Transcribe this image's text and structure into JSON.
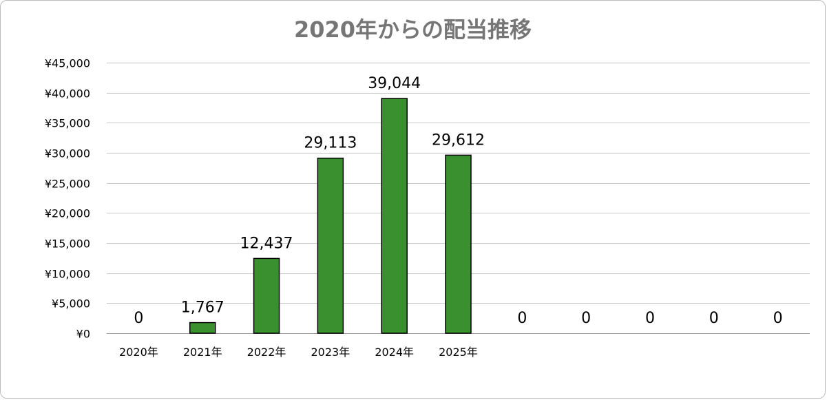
{
  "chart_data": {
    "type": "bar",
    "title": "2020年からの配当推移",
    "xlabel": "",
    "ylabel": "",
    "categories": [
      "2020年",
      "2021年",
      "2022年",
      "2023年",
      "2024年",
      "2025年",
      "",
      "",
      "",
      "",
      ""
    ],
    "values": [
      0,
      1767,
      12437,
      29113,
      39044,
      29612,
      0,
      0,
      0,
      0,
      0
    ],
    "value_labels": [
      "0",
      "1,767",
      "12,437",
      "29,113",
      "39,044",
      "29,612",
      "0",
      "0",
      "0",
      "0",
      "0"
    ],
    "ylim": [
      0,
      45000
    ],
    "y_ticks": [
      0,
      5000,
      10000,
      15000,
      20000,
      25000,
      30000,
      35000,
      40000,
      45000
    ],
    "y_tick_labels": [
      "¥0",
      "¥5,000",
      "¥10,000",
      "¥15,000",
      "¥20,000",
      "¥25,000",
      "¥30,000",
      "¥35,000",
      "¥40,000",
      "¥45,000"
    ],
    "grid": true,
    "legend": "none",
    "colors": {
      "bar_fill": "#3a8f2e",
      "bar_stroke": "#000000",
      "grid": "#c8c8c8",
      "title": "#767676"
    }
  }
}
